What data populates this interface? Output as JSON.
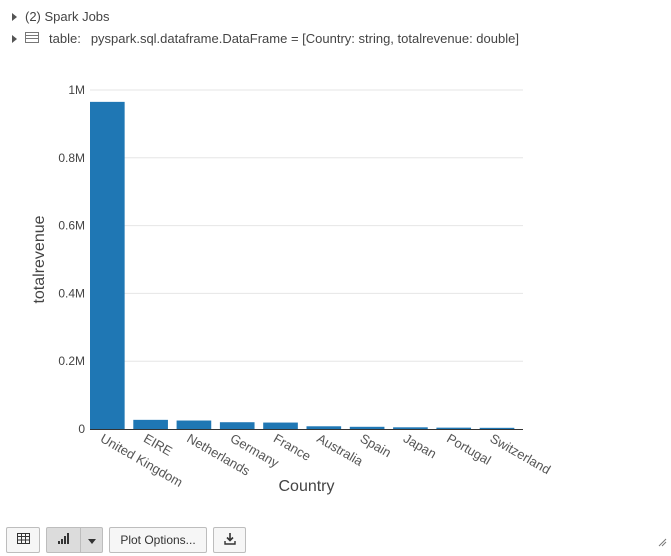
{
  "header": {
    "spark_jobs_label": "(2) Spark Jobs",
    "table_label": "table:",
    "table_schema": "pyspark.sql.dataframe.DataFrame = [Country: string, totalrevenue: double]"
  },
  "chart_data": {
    "type": "bar",
    "categories": [
      "United Kingdom",
      "EIRE",
      "Netherlands",
      "Germany",
      "France",
      "Australia",
      "Spain",
      "Japan",
      "Portugal",
      "Switzerland"
    ],
    "values": [
      965000,
      27000,
      25000,
      20000,
      19000,
      8000,
      6500,
      5000,
      4000,
      3500
    ],
    "xlabel": "Country",
    "ylabel": "totalrevenue",
    "ylim": [
      0,
      1000000
    ],
    "yticks": [
      {
        "value": 0,
        "label": "0"
      },
      {
        "value": 200000,
        "label": "0.2M"
      },
      {
        "value": 400000,
        "label": "0.4M"
      },
      {
        "value": 600000,
        "label": "0.6M"
      },
      {
        "value": 800000,
        "label": "0.8M"
      },
      {
        "value": 1000000,
        "label": "1M"
      }
    ],
    "grid": true,
    "bar_color": "#1f77b4"
  },
  "toolbar": {
    "plot_options_label": "Plot Options..."
  },
  "icons": {
    "table": "table-view-icon",
    "bar": "bar-chart-icon",
    "dropdown": "chevron-down-icon",
    "download": "download-icon"
  }
}
